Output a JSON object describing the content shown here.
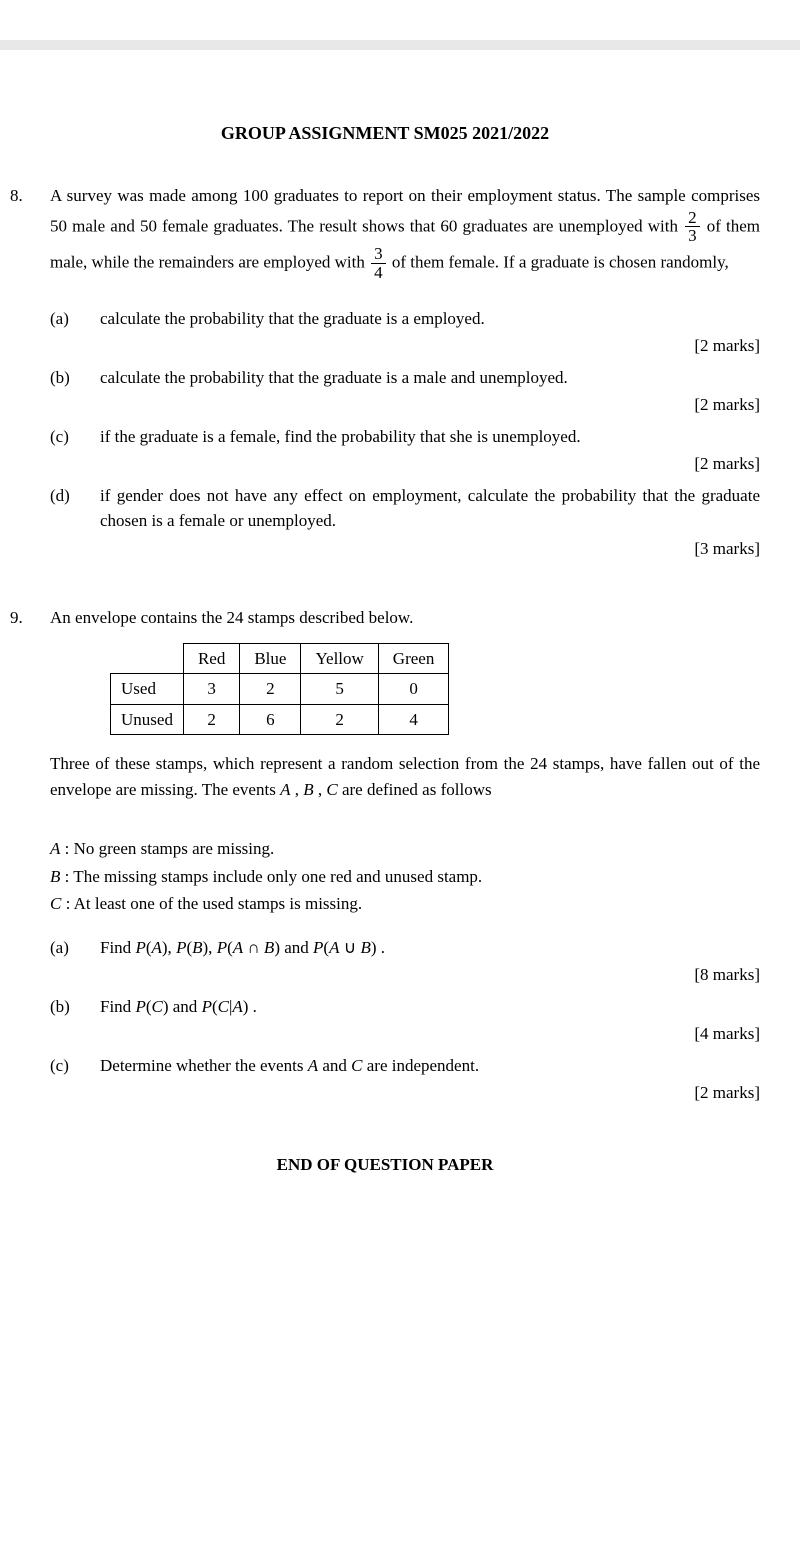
{
  "title": "GROUP ASSIGNMENT SM025 2021/2022",
  "q8": {
    "num": "8.",
    "intro1": "A survey was made among 100 graduates to report on their employment status. The sample comprises 50 male and 50 female graduates. The result shows that 60 graduates are unemployed with ",
    "frac1_num": "2",
    "frac1_den": "3",
    "intro2": " of them male, while the remainders are employed with ",
    "frac2_num": "3",
    "frac2_den": "4",
    "intro3": " of them female. If a graduate is chosen randomly,",
    "a_label": "(a)",
    "a_text": "calculate the probability that the graduate is a employed.",
    "a_marks": "[2 marks]",
    "b_label": "(b)",
    "b_text": "calculate the probability that the graduate is a male and unemployed.",
    "b_marks": "[2 marks]",
    "c_label": "(c)",
    "c_text": "if the graduate is a female, find the probability that she is unemployed.",
    "c_marks": "[2 marks]",
    "d_label": "(d)",
    "d_text": "if gender does not have any effect on employment, calculate the probability that the graduate chosen is a female or unemployed.",
    "d_marks": "[3 marks]"
  },
  "q9": {
    "num": "9.",
    "intro": "An envelope contains the 24 stamps described below.",
    "table": {
      "headers": [
        "Red",
        "Blue",
        "Yellow",
        "Green"
      ],
      "rows": [
        {
          "label": "Used",
          "cells": [
            "3",
            "2",
            "5",
            "0"
          ]
        },
        {
          "label": "Unused",
          "cells": [
            "2",
            "6",
            "2",
            "4"
          ]
        }
      ]
    },
    "after_table": "Three of these stamps, which represent a random selection from the 24 stamps, have fallen out of the envelope are missing. The events ",
    "after_table2": " are defined as follows",
    "ev_a": " : No green stamps are missing.",
    "ev_b": " : The missing stamps include only one red and unused stamp.",
    "ev_c": " : At least one of the used stamps is missing.",
    "a_label": "(a)",
    "a_text1": "Find ",
    "a_text2": " and ",
    "a_marks": "[8 marks]",
    "b_label": "(b)",
    "b_text1": "Find ",
    "b_text2": " and ",
    "b_marks": "[4 marks]",
    "c_label": "(c)",
    "c_text1": "Determine whether the events ",
    "c_text2": " and ",
    "c_text3": " are independent.",
    "c_marks": "[2 marks]"
  },
  "end": "END OF QUESTION PAPER",
  "style": {
    "text_color": "#000000",
    "background": "#ffffff",
    "page_bg": "#f0f0f0",
    "font_family": "Times New Roman",
    "body_fontsize": 17,
    "title_fontsize": 18,
    "border_color": "#000000"
  }
}
